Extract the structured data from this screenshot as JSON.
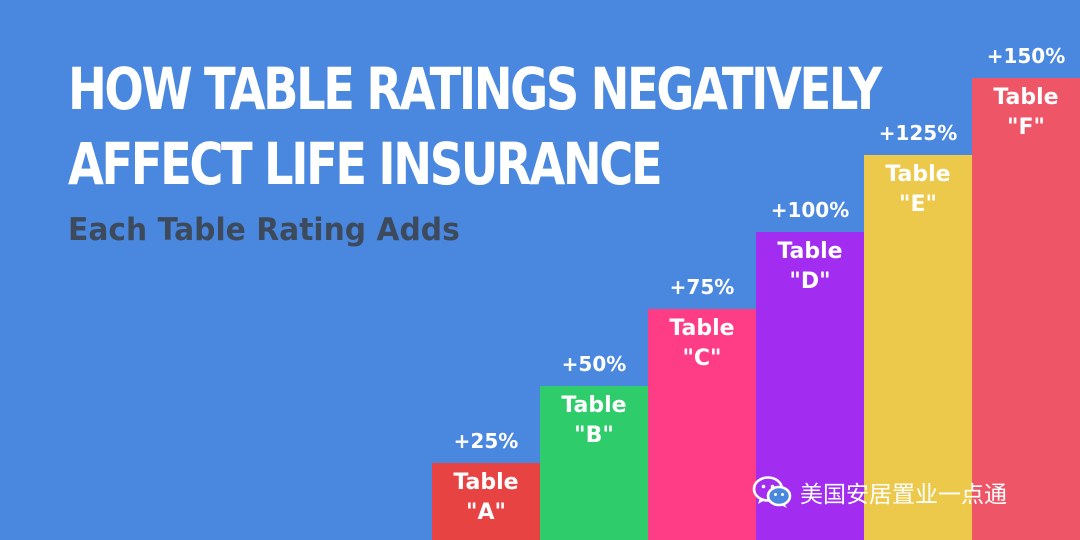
{
  "colors": {
    "background": "#4a88e0",
    "title": "#ffffff",
    "subtitle": "#3d4a5c"
  },
  "header": {
    "title_line1": "HOW TABLE RATINGS NEGATIVELY",
    "title_line2": "AFFECT LIFE INSURANCE",
    "subtitle": "Each Table Rating Adds"
  },
  "watermark": {
    "icon": "wechat-icon",
    "text": "美国安居置业一点通"
  },
  "chart_data": {
    "type": "bar",
    "categories": [
      "A",
      "B",
      "C",
      "D",
      "E",
      "F"
    ],
    "series": [
      {
        "values": [
          25,
          50,
          75,
          100,
          125,
          150
        ]
      }
    ],
    "value_labels": [
      "+25%",
      "+50%",
      "+75%",
      "+100%",
      "+125%",
      "+150%"
    ],
    "bar_labels": [
      [
        "Table",
        "\"A\""
      ],
      [
        "Table",
        "\"B\""
      ],
      [
        "Table",
        "\"C\""
      ],
      [
        "Table",
        "\"D\""
      ],
      [
        "Table",
        "\"E\""
      ],
      [
        "Table",
        "\"F\""
      ]
    ],
    "bar_colors": [
      "#e84343",
      "#2ecc6b",
      "#ff3d87",
      "#a22cf0",
      "#ecc94b",
      "#ee5566"
    ],
    "ylim": [
      0,
      150
    ],
    "axes_visible": false,
    "grid": false,
    "legend": "none"
  }
}
